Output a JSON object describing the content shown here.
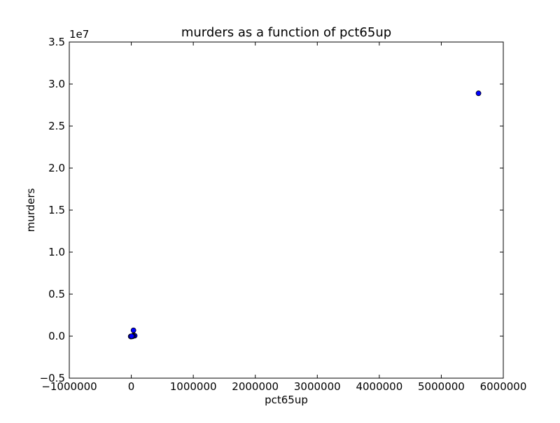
{
  "chart_data": {
    "type": "scatter",
    "title": "murders as a function of pct65up",
    "xlabel": "pct65up",
    "ylabel": "murders",
    "y_offset_label": "1e7",
    "xlim": [
      -1000000,
      6000000
    ],
    "ylim": [
      -5000000,
      35000000
    ],
    "x_ticks": [
      -1000000,
      0,
      1000000,
      2000000,
      3000000,
      4000000,
      5000000,
      6000000
    ],
    "x_tick_labels": [
      "−1000000",
      "0",
      "1000000",
      "2000000",
      "3000000",
      "4000000",
      "5000000",
      "6000000"
    ],
    "y_ticks": [
      -5000000,
      0,
      5000000,
      10000000,
      15000000,
      20000000,
      25000000,
      30000000,
      35000000
    ],
    "y_tick_labels": [
      "−0.5",
      "0.0",
      "0.5",
      "1.0",
      "1.5",
      "2.0",
      "2.5",
      "3.0",
      "3.5"
    ],
    "grid": false,
    "marker_color": "#0000ff",
    "marker_edge": "#000000",
    "points": [
      {
        "x": 5600000,
        "y": 28900000
      },
      {
        "x": 35000,
        "y": 700000
      },
      {
        "x": 40000,
        "y": 100000
      },
      {
        "x": 55000,
        "y": 50000
      },
      {
        "x": 30000,
        "y": 20000
      },
      {
        "x": 10000,
        "y": -30000
      },
      {
        "x": -5000,
        "y": -40000
      },
      {
        "x": -10000,
        "y": -35000
      },
      {
        "x": 20000,
        "y": -20000
      },
      {
        "x": 5000,
        "y": 0
      }
    ]
  }
}
